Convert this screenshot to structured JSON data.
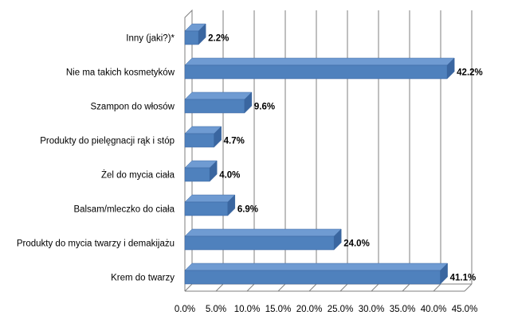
{
  "chart_data": {
    "type": "bar",
    "orientation": "horizontal",
    "style": "3d",
    "title": "",
    "xlabel": "",
    "ylabel": "",
    "categories": [
      "Inny (jaki?)*",
      "Nie ma takich kosmetyków",
      "Szampon do włosów",
      "Produkty do pielęgnacji rąk i stóp",
      "Żel do mycia ciała",
      "Balsam/mleczko do ciała",
      "Produkty do mycia twarzy i demakijażu",
      "Krem do twarzy"
    ],
    "values": [
      2.2,
      42.2,
      9.6,
      4.7,
      4.0,
      6.9,
      24.0,
      41.1
    ],
    "value_labels": [
      "2.2%",
      "42.2%",
      "9.6%",
      "4.7%",
      "4.0%",
      "6.9%",
      "24.0%",
      "41.1%"
    ],
    "xlim": [
      0,
      45
    ],
    "xticks": [
      0,
      5,
      10,
      15,
      20,
      25,
      30,
      35,
      40,
      45
    ],
    "xtick_labels": [
      "0.0%",
      "5.0%",
      "10.0%",
      "15.0%",
      "20.0%",
      "25.0%",
      "30.0%",
      "35.0%",
      "40.0%",
      "45.0%"
    ],
    "grid": true,
    "legend": "none",
    "bar_color": "#4f81bd",
    "bar_top_color": "#6f9bd2",
    "bar_side_color": "#3a66a0",
    "grid_color": "#7f7f7f"
  }
}
